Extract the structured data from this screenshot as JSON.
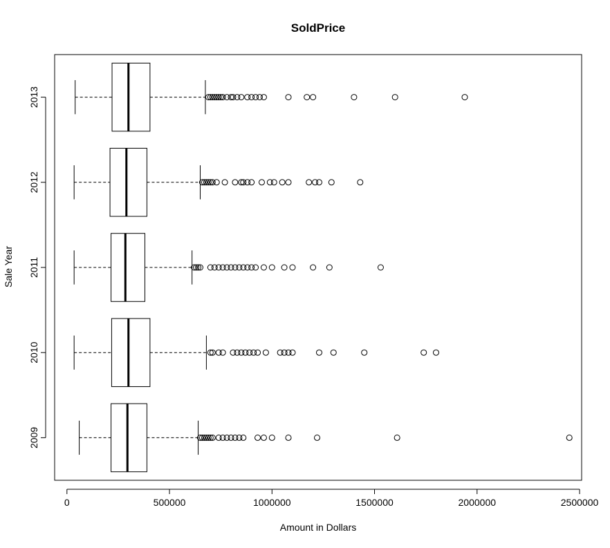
{
  "chart_data": {
    "type": "boxplot",
    "orientation": "horizontal",
    "title": "SoldPrice",
    "xlabel": "Amount in Dollars",
    "ylabel": "Sale Year",
    "xlim": [
      -60000,
      2510000
    ],
    "x_ticks": [
      0,
      500000,
      1000000,
      1500000,
      2000000,
      2500000
    ],
    "x_tick_labels": [
      "0",
      "500000",
      "1000000",
      "1500000",
      "2000000",
      "2500000"
    ],
    "categories": [
      "2009",
      "2010",
      "2011",
      "2012",
      "2013"
    ],
    "series": [
      {
        "category": "2009",
        "whisker_low": 60000,
        "q1": 215000,
        "median": 295000,
        "q3": 390000,
        "whisker_high": 640000,
        "outliers": [
          650000,
          660000,
          670000,
          680000,
          690000,
          700000,
          710000,
          740000,
          760000,
          780000,
          800000,
          820000,
          840000,
          860000,
          930000,
          960000,
          1000000,
          1080000,
          1220000,
          1610000,
          2450000
        ]
      },
      {
        "category": "2010",
        "whisker_low": 35000,
        "q1": 218000,
        "median": 300000,
        "q3": 405000,
        "whisker_high": 680000,
        "outliers": [
          700000,
          710000,
          740000,
          760000,
          810000,
          830000,
          850000,
          870000,
          890000,
          910000,
          930000,
          970000,
          1040000,
          1060000,
          1080000,
          1100000,
          1230000,
          1300000,
          1450000,
          1740000,
          1800000
        ]
      },
      {
        "category": "2011",
        "whisker_low": 35000,
        "q1": 215000,
        "median": 285000,
        "q3": 380000,
        "whisker_high": 610000,
        "outliers": [
          620000,
          630000,
          640000,
          650000,
          700000,
          720000,
          740000,
          760000,
          780000,
          800000,
          820000,
          840000,
          860000,
          880000,
          900000,
          920000,
          960000,
          1000000,
          1060000,
          1100000,
          1200000,
          1280000,
          1530000
        ]
      },
      {
        "category": "2012",
        "whisker_low": 35000,
        "q1": 210000,
        "median": 290000,
        "q3": 390000,
        "whisker_high": 650000,
        "outliers": [
          660000,
          670000,
          680000,
          690000,
          700000,
          710000,
          730000,
          770000,
          820000,
          850000,
          860000,
          880000,
          900000,
          950000,
          990000,
          1010000,
          1050000,
          1080000,
          1180000,
          1210000,
          1230000,
          1290000,
          1430000
        ]
      },
      {
        "category": "2013",
        "whisker_low": 40000,
        "q1": 220000,
        "median": 300000,
        "q3": 405000,
        "whisker_high": 675000,
        "outliers": [
          690000,
          700000,
          710000,
          720000,
          730000,
          740000,
          750000,
          760000,
          780000,
          800000,
          810000,
          830000,
          850000,
          880000,
          900000,
          920000,
          940000,
          960000,
          1080000,
          1170000,
          1200000,
          1400000,
          1600000,
          1940000
        ]
      }
    ]
  }
}
